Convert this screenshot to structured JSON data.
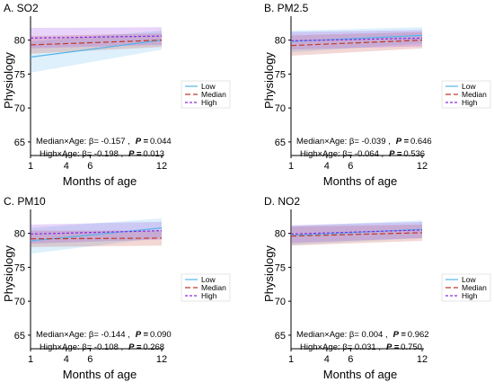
{
  "colors": {
    "low": "#56b4e9",
    "median": "#c0392b",
    "high": "#8a2be2"
  },
  "chart_data": [
    {
      "type": "line",
      "title": "A. SO2",
      "xlabel": "Months of age",
      "ylabel": "Physiology",
      "xticks": [
        1,
        4,
        6,
        12
      ],
      "yticks": [
        65,
        70,
        75,
        80
      ],
      "xlim": [
        1,
        12
      ],
      "ylim": [
        63,
        83
      ],
      "legend_position": "right",
      "series": [
        {
          "name": "Low",
          "x": [
            1,
            12
          ],
          "y": [
            77.5,
            80.0
          ],
          "lower": [
            75.2,
            78.6
          ],
          "upper": [
            79.8,
            81.4
          ]
        },
        {
          "name": "Median",
          "x": [
            1,
            12
          ],
          "y": [
            79.3,
            80.0
          ],
          "lower": [
            78.0,
            79.0
          ],
          "upper": [
            80.6,
            81.0
          ]
        },
        {
          "name": "High",
          "x": [
            1,
            12
          ],
          "y": [
            80.3,
            80.6
          ],
          "lower": [
            78.8,
            79.3
          ],
          "upper": [
            81.8,
            81.9
          ]
        }
      ],
      "annotations": [
        {
          "label": "Median×Age: β= -0.157 ,",
          "p": "0.044"
        },
        {
          "label": "High×Age: β= -0.198 ,",
          "p": "0.013"
        }
      ]
    },
    {
      "type": "line",
      "title": "B. PM2.5",
      "xlabel": "Months of age",
      "ylabel": "Physiology",
      "xticks": [
        1,
        4,
        6,
        12
      ],
      "yticks": [
        65,
        70,
        75,
        80
      ],
      "xlim": [
        1,
        12
      ],
      "ylim": [
        63,
        83
      ],
      "legend_position": "right",
      "series": [
        {
          "name": "Low",
          "x": [
            1,
            12
          ],
          "y": [
            79.8,
            80.7
          ],
          "lower": [
            78.2,
            79.5
          ],
          "upper": [
            81.4,
            81.9
          ]
        },
        {
          "name": "Median",
          "x": [
            1,
            12
          ],
          "y": [
            79.2,
            80.0
          ],
          "lower": [
            77.7,
            78.8
          ],
          "upper": [
            80.7,
            81.2
          ]
        },
        {
          "name": "High",
          "x": [
            1,
            12
          ],
          "y": [
            79.9,
            80.3
          ],
          "lower": [
            78.6,
            79.1
          ],
          "upper": [
            81.2,
            81.5
          ]
        }
      ],
      "annotations": [
        {
          "label": "Median×Age: β= -0.039 ,",
          "p": "0.646"
        },
        {
          "label": "High×Age: β= -0.064 ,",
          "p": "0.536"
        }
      ]
    },
    {
      "type": "line",
      "title": "C. PM10",
      "xlabel": "Months of age",
      "ylabel": "Physiology",
      "xticks": [
        1,
        4,
        6,
        12
      ],
      "yticks": [
        65,
        70,
        75,
        80
      ],
      "xlim": [
        1,
        12
      ],
      "ylim": [
        63,
        83
      ],
      "legend_position": "right",
      "series": [
        {
          "name": "Low",
          "x": [
            1,
            12
          ],
          "y": [
            78.9,
            80.8
          ],
          "lower": [
            77.0,
            79.4
          ],
          "upper": [
            80.8,
            82.2
          ]
        },
        {
          "name": "Median",
          "x": [
            1,
            12
          ],
          "y": [
            79.2,
            79.3
          ],
          "lower": [
            78.0,
            78.2
          ],
          "upper": [
            80.4,
            80.4
          ]
        },
        {
          "name": "High",
          "x": [
            1,
            12
          ],
          "y": [
            79.9,
            80.4
          ],
          "lower": [
            78.5,
            79.1
          ],
          "upper": [
            81.3,
            81.7
          ]
        }
      ],
      "annotations": [
        {
          "label": "Median×Age: β= -0.144 ,",
          "p": "0.090"
        },
        {
          "label": "High×Age: β= -0.108 ,",
          "p": "0.268"
        }
      ]
    },
    {
      "type": "line",
      "title": "D. NO2",
      "xlabel": "Months of age",
      "ylabel": "Physiology",
      "xticks": [
        1,
        4,
        6,
        12
      ],
      "yticks": [
        65,
        70,
        75,
        80
      ],
      "xlim": [
        1,
        12
      ],
      "ylim": [
        63,
        83
      ],
      "legend_position": "right",
      "series": [
        {
          "name": "Low",
          "x": [
            1,
            12
          ],
          "y": [
            79.7,
            80.6
          ],
          "lower": [
            78.3,
            79.3
          ],
          "upper": [
            81.1,
            81.9
          ]
        },
        {
          "name": "Median",
          "x": [
            1,
            12
          ],
          "y": [
            79.6,
            80.1
          ],
          "lower": [
            78.2,
            78.9
          ],
          "upper": [
            81.0,
            81.3
          ]
        },
        {
          "name": "High",
          "x": [
            1,
            12
          ],
          "y": [
            79.9,
            80.5
          ],
          "lower": [
            78.6,
            79.3
          ],
          "upper": [
            81.2,
            81.7
          ]
        }
      ],
      "annotations": [
        {
          "label": "Median×Age: β= 0.004 ,",
          "p": "0.962"
        },
        {
          "label": "High×Age: β= 0.031 ,",
          "p": "0.750"
        }
      ]
    }
  ],
  "p_symbol": "P ="
}
